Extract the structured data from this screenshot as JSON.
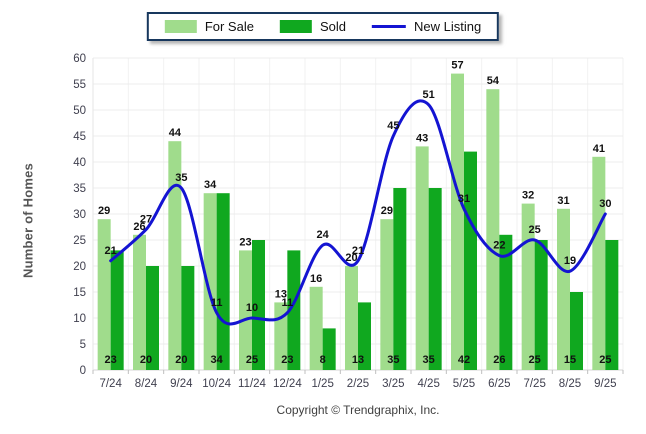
{
  "legend": {
    "for_sale_label": "For Sale",
    "sold_label": "Sold",
    "new_listing_label": "New Listing"
  },
  "footer": {
    "copyright": "Copyright © Trendgraphix, Inc."
  },
  "colors": {
    "for_sale": "#A0DC8C",
    "sold": "#10A81F",
    "new_listing": "#1414D2",
    "grid": "#ECECEC",
    "grid_vertical": "#F2F2F2",
    "axis_text": "#40404F",
    "data_label": "#111111",
    "legend_border": "#17375D"
  },
  "chart_data": {
    "type": "combo",
    "title": "",
    "xlabel": "",
    "ylabel": "Number of Homes",
    "ylim": [
      0,
      60
    ],
    "ytick_step": 5,
    "grid": true,
    "legend_position": "top",
    "categories": [
      "7/24",
      "8/24",
      "9/24",
      "10/24",
      "11/24",
      "12/24",
      "1/25",
      "2/25",
      "3/25",
      "4/25",
      "5/25",
      "6/25",
      "7/25",
      "8/25",
      "9/25"
    ],
    "series": [
      {
        "name": "For Sale",
        "type": "bar",
        "color": "#A0DC8C",
        "values": [
          29,
          26,
          44,
          34,
          23,
          13,
          16,
          20,
          29,
          43,
          57,
          54,
          32,
          31,
          41
        ]
      },
      {
        "name": "Sold",
        "type": "bar",
        "color": "#10A81F",
        "values": [
          23,
          20,
          20,
          34,
          25,
          23,
          8,
          13,
          35,
          35,
          42,
          26,
          25,
          15,
          25
        ]
      },
      {
        "name": "New Listing",
        "type": "line",
        "color": "#1414D2",
        "values": [
          21,
          27,
          35,
          11,
          10,
          11,
          24,
          21,
          45,
          51,
          31,
          22,
          25,
          19,
          30
        ]
      }
    ]
  }
}
